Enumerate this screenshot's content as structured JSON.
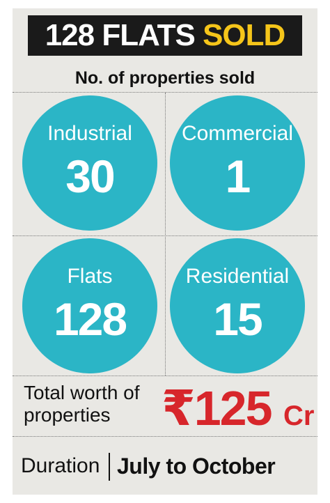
{
  "header": {
    "title": "128 FLATS",
    "highlight": "SOLD"
  },
  "subtitle": "No. of properties sold",
  "stats": [
    {
      "label": "Industrial",
      "value": 30
    },
    {
      "label": "Commercial",
      "value": 1
    },
    {
      "label": "Flats",
      "value": 128
    },
    {
      "label": "Residential",
      "value": 15
    }
  ],
  "total": {
    "label_lines": [
      "Total worth of",
      "properties"
    ],
    "currency": "₹",
    "amount": 125,
    "unit": "Cr"
  },
  "duration": {
    "label": "Duration",
    "value": "July to October"
  }
}
